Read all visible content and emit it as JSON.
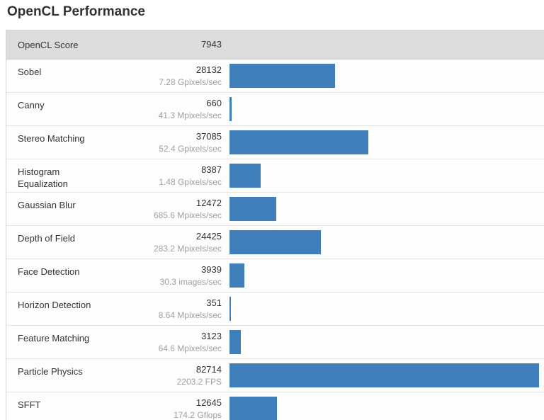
{
  "title": "OpenCL Performance",
  "colors": {
    "bar": "#3d7ebb",
    "header_bg": "#dcdcdc"
  },
  "header": {
    "label": "OpenCL Score",
    "value": "7943"
  },
  "chart_data": {
    "type": "bar",
    "orientation": "horizontal",
    "title": "OpenCL Performance",
    "score_label": "OpenCL Score",
    "score_value": 7943,
    "max_value": 82714,
    "grid": false,
    "legend_position": "none",
    "categories": [
      "Sobel",
      "Canny",
      "Stereo Matching",
      "Histogram Equalization",
      "Gaussian Blur",
      "Depth of Field",
      "Face Detection",
      "Horizon Detection",
      "Feature Matching",
      "Particle Physics",
      "SFFT"
    ],
    "values": [
      28132,
      660,
      37085,
      8387,
      12472,
      24425,
      3939,
      351,
      3123,
      82714,
      12645
    ],
    "rate_labels": [
      "7.28 Gpixels/sec",
      "41.3 Mpixels/sec",
      "52.4 Gpixels/sec",
      "1.48 Gpixels/sec",
      "685.6 Mpixels/sec",
      "283.2 Mpixels/sec",
      "30.3 images/sec",
      "8.64 Mpixels/sec",
      "64.6 Mpixels/sec",
      "2203.2 FPS",
      "174.2 Gflops"
    ]
  }
}
